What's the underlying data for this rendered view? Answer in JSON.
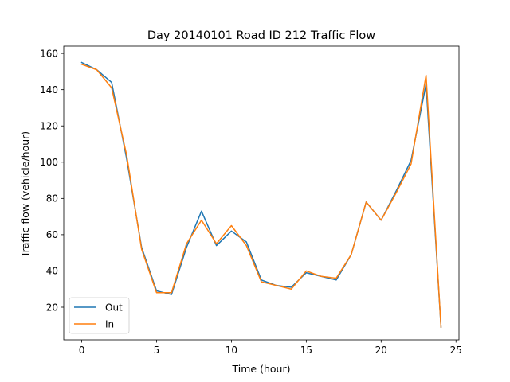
{
  "chart_data": {
    "type": "line",
    "title": "Day 20140101 Road ID 212 Traffic Flow",
    "xlabel": "Time (hour)",
    "ylabel": "Traffic flow (vehicle/hour)",
    "xlim": [
      -1.2,
      25.2
    ],
    "ylim": [
      2,
      164
    ],
    "xticks": [
      0,
      5,
      10,
      15,
      20,
      25
    ],
    "yticks": [
      20,
      40,
      60,
      80,
      100,
      120,
      140,
      160
    ],
    "grid": false,
    "legend_position": "lower-left",
    "series": [
      {
        "name": "Out",
        "color": "#1f77b4",
        "x": [
          0,
          1,
          2,
          3,
          4,
          5,
          6,
          7,
          8,
          9,
          10,
          11,
          12,
          13,
          14,
          15,
          16,
          17,
          18,
          19,
          20,
          21,
          22,
          23,
          24
        ],
        "values": [
          155,
          151,
          144,
          102,
          53,
          29,
          27,
          53,
          73,
          54,
          62,
          56,
          35,
          32,
          31,
          39,
          37,
          35,
          49,
          78,
          68,
          84,
          101,
          143,
          9
        ]
      },
      {
        "name": "In",
        "color": "#ff7f0e",
        "x": [
          0,
          1,
          2,
          3,
          4,
          5,
          6,
          7,
          8,
          9,
          10,
          11,
          12,
          13,
          14,
          15,
          16,
          17,
          18,
          19,
          20,
          21,
          22,
          23,
          24
        ],
        "values": [
          154,
          151,
          141,
          104,
          52,
          28,
          28,
          55,
          68,
          55,
          65,
          54,
          34,
          32,
          30,
          40,
          37,
          36,
          49,
          78,
          68,
          83,
          99,
          148,
          9
        ]
      }
    ]
  }
}
